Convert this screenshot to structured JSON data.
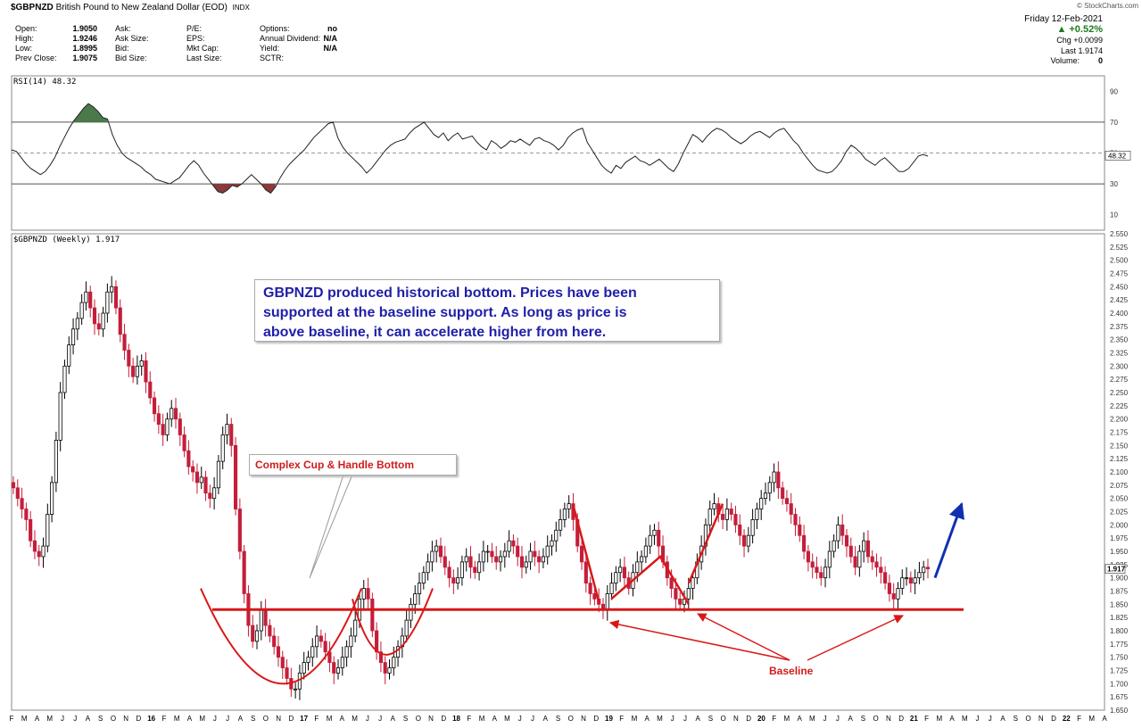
{
  "header": {
    "symbol": "$GBPNZD",
    "name": "British Pound to New Zealand Dollar (EOD)",
    "exchange": "INDX",
    "logo": "© StockCharts.com",
    "date": "Friday  12-Feb-2021",
    "change_pct": "▲ +0.52%",
    "chg": "Chg +0.0099",
    "last": "Last  1.9174",
    "volume_label": "Volume:",
    "volume": "0",
    "col1": [
      {
        "label": "Open:",
        "value": "1.9050"
      },
      {
        "label": "High:",
        "value": "1.9246"
      },
      {
        "label": "Low:",
        "value": "1.8995"
      },
      {
        "label": "Prev Close:",
        "value": "1.9075"
      }
    ],
    "col2": [
      "Ask:",
      "Ask Size:",
      "Bid:",
      "Bid Size:"
    ],
    "col3": [
      "P/E:",
      "EPS:",
      "Mkt Cap:",
      "Last Size:"
    ],
    "col4": [
      {
        "label": "Options:",
        "value": "no"
      },
      {
        "label": "Annual Dividend:",
        "value": "N/A"
      },
      {
        "label": "Yield:",
        "value": "N/A"
      },
      {
        "label": "SCTR:",
        "value": ""
      }
    ]
  },
  "annotations": {
    "note": "GBPNZD produced historical bottom. Prices have been\nsupported at the baseline support. As long as price is\nabove baseline, it can accelerate higher from here.",
    "cup": "Complex Cup & Handle Bottom",
    "baseline": "Baseline"
  },
  "colors": {
    "up": "#000000",
    "down": "#c41e3a",
    "annotation_red": "#d81818",
    "arrow_blue": "#1030b0",
    "rsi_overbought_fill": "#4a7a4a",
    "rsi_oversold_fill": "#8a3a3a"
  },
  "chart_data": [
    {
      "type": "line",
      "title": "RSI(14) 48.32",
      "ylim": [
        0,
        100
      ],
      "y_ticks": [
        "90",
        "70",
        "50",
        "30",
        "10"
      ],
      "current_value_label": "48.32",
      "reference_lines": [
        70,
        30
      ],
      "values": [
        52,
        51,
        47,
        43,
        40,
        38,
        36,
        38,
        42,
        47,
        54,
        60,
        66,
        71,
        75,
        79,
        82,
        80,
        77,
        73,
        72,
        62,
        55,
        50,
        47,
        45,
        43,
        41,
        38,
        36,
        33,
        32,
        31,
        30,
        32,
        34,
        38,
        42,
        45,
        42,
        37,
        33,
        29,
        25,
        24,
        26,
        29,
        28,
        30,
        33,
        36,
        33,
        30,
        26,
        24,
        28,
        34,
        39,
        43,
        46,
        49,
        52,
        56,
        60,
        63,
        66,
        69,
        70,
        60,
        54,
        50,
        47,
        44,
        41,
        37,
        40,
        44,
        48,
        52,
        55,
        57,
        58,
        59,
        63,
        66,
        68,
        70,
        66,
        62,
        60,
        63,
        58,
        61,
        63,
        59,
        60,
        61,
        57,
        54,
        52,
        58,
        56,
        53,
        55,
        58,
        57,
        59,
        57,
        55,
        59,
        60,
        58,
        57,
        55,
        52,
        55,
        60,
        63,
        65,
        66,
        57,
        52,
        47,
        42,
        39,
        37,
        42,
        40,
        44,
        46,
        48,
        45,
        44,
        42,
        44,
        46,
        43,
        40,
        38,
        43,
        50,
        56,
        62,
        60,
        57,
        61,
        64,
        66,
        65,
        63,
        60,
        58,
        56,
        58,
        61,
        63,
        64,
        62,
        60,
        63,
        65,
        66,
        62,
        58,
        55,
        50,
        46,
        42,
        39,
        38,
        37,
        38,
        41,
        45,
        51,
        55,
        53,
        50,
        46,
        44,
        42,
        45,
        47,
        44,
        41,
        38,
        38,
        40,
        44,
        48,
        49,
        48
      ]
    },
    {
      "type": "candlestick",
      "title": "$GBPNZD (Weekly) 1.917",
      "current_value_label": "1.917",
      "ylim": [
        1.65,
        2.55
      ],
      "y_ticks": [
        "2.550",
        "2.525",
        "2.500",
        "2.475",
        "2.450",
        "2.425",
        "2.400",
        "2.375",
        "2.350",
        "2.325",
        "2.300",
        "2.275",
        "2.250",
        "2.225",
        "2.200",
        "2.175",
        "2.150",
        "2.125",
        "2.100",
        "2.075",
        "2.050",
        "2.025",
        "2.000",
        "1.975",
        "1.950",
        "1.925",
        "1.900",
        "1.875",
        "1.850",
        "1.825",
        "1.800",
        "1.775",
        "1.750",
        "1.725",
        "1.700",
        "1.675",
        "1.650"
      ],
      "x_labels": [
        "F",
        "M",
        "A",
        "M",
        "J",
        "J",
        "A",
        "S",
        "O",
        "N",
        "D",
        "16",
        "F",
        "M",
        "A",
        "M",
        "J",
        "J",
        "A",
        "S",
        "O",
        "N",
        "D",
        "17",
        "F",
        "M",
        "A",
        "M",
        "J",
        "J",
        "A",
        "S",
        "O",
        "N",
        "D",
        "18",
        "F",
        "M",
        "A",
        "M",
        "J",
        "J",
        "A",
        "S",
        "O",
        "N",
        "D",
        "19",
        "F",
        "M",
        "A",
        "M",
        "J",
        "J",
        "A",
        "S",
        "O",
        "N",
        "D",
        "20",
        "F",
        "M",
        "A",
        "M",
        "J",
        "J",
        "A",
        "S",
        "O",
        "N",
        "D",
        "21",
        "F",
        "M",
        "A",
        "M",
        "J",
        "J",
        "A",
        "S",
        "O",
        "N",
        "D",
        "22",
        "F",
        "M",
        "A"
      ],
      "close": [
        2.07,
        2.05,
        2.03,
        2.01,
        1.97,
        1.95,
        1.94,
        1.96,
        2.02,
        2.08,
        2.16,
        2.25,
        2.3,
        2.34,
        2.37,
        2.39,
        2.42,
        2.44,
        2.41,
        2.38,
        2.37,
        2.4,
        2.44,
        2.45,
        2.41,
        2.36,
        2.33,
        2.3,
        2.28,
        2.3,
        2.31,
        2.27,
        2.24,
        2.21,
        2.19,
        2.17,
        2.2,
        2.22,
        2.2,
        2.17,
        2.14,
        2.11,
        2.1,
        2.08,
        2.09,
        2.06,
        2.05,
        2.07,
        2.12,
        2.17,
        2.19,
        2.15,
        2.03,
        1.95,
        1.87,
        1.81,
        1.78,
        1.8,
        1.84,
        1.81,
        1.79,
        1.77,
        1.75,
        1.73,
        1.71,
        1.69,
        1.69,
        1.72,
        1.74,
        1.75,
        1.77,
        1.79,
        1.78,
        1.76,
        1.74,
        1.72,
        1.73,
        1.75,
        1.77,
        1.79,
        1.82,
        1.86,
        1.88,
        1.86,
        1.8,
        1.76,
        1.74,
        1.72,
        1.73,
        1.75,
        1.77,
        1.79,
        1.82,
        1.85,
        1.87,
        1.89,
        1.91,
        1.93,
        1.95,
        1.96,
        1.94,
        1.92,
        1.9,
        1.89,
        1.9,
        1.93,
        1.94,
        1.92,
        1.91,
        1.93,
        1.95,
        1.95,
        1.94,
        1.93,
        1.94,
        1.95,
        1.97,
        1.96,
        1.94,
        1.92,
        1.93,
        1.95,
        1.94,
        1.93,
        1.94,
        1.96,
        1.97,
        1.99,
        2.01,
        2.03,
        2.04,
        2.01,
        1.96,
        1.93,
        1.89,
        1.87,
        1.86,
        1.85,
        1.84,
        1.87,
        1.89,
        1.91,
        1.92,
        1.9,
        1.88,
        1.91,
        1.93,
        1.94,
        1.96,
        1.98,
        1.99,
        1.96,
        1.93,
        1.9,
        1.88,
        1.86,
        1.85,
        1.86,
        1.88,
        1.9,
        1.93,
        1.96,
        2.0,
        2.03,
        2.04,
        2.02,
        2.01,
        2.03,
        2.02,
        2.0,
        1.98,
        1.96,
        1.98,
        2.01,
        2.03,
        2.05,
        2.06,
        2.08,
        2.1,
        2.07,
        2.05,
        2.04,
        2.02,
        2.0,
        1.98,
        1.95,
        1.93,
        1.92,
        1.91,
        1.9,
        1.92,
        1.95,
        1.97,
        2.0,
        1.98,
        1.96,
        1.94,
        1.92,
        1.95,
        1.97,
        1.94,
        1.93,
        1.92,
        1.91,
        1.89,
        1.87,
        1.86,
        1.88,
        1.9,
        1.9,
        1.89,
        1.9,
        1.91,
        1.92,
        1.917
      ]
    }
  ]
}
